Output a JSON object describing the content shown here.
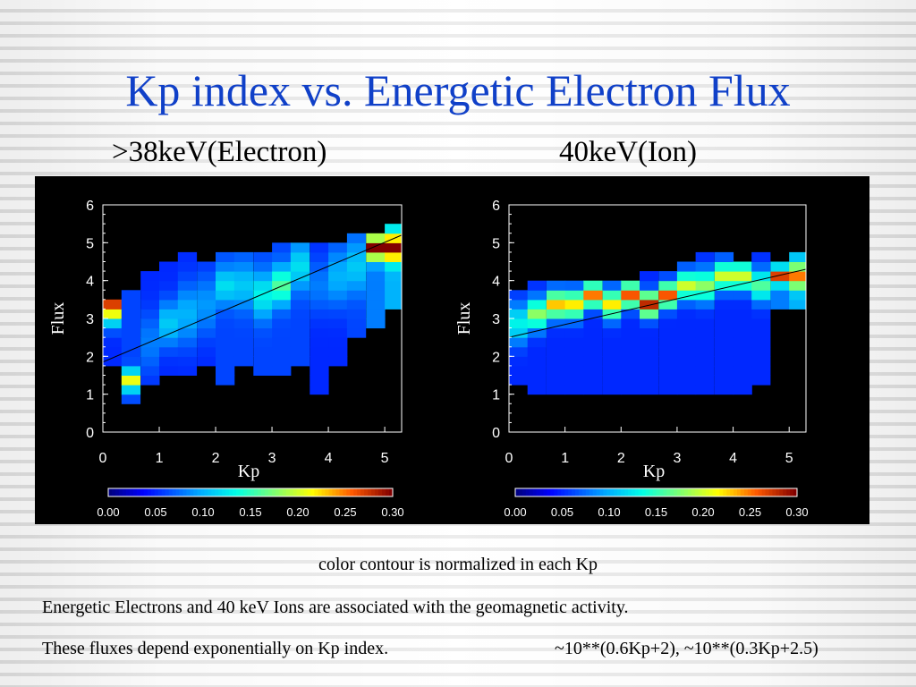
{
  "slide": {
    "title": "Kp index vs. Energetic Electron Flux",
    "subtitle_left": ">38keV(Electron)",
    "subtitle_right": "40keV(Ion)",
    "caption": "color contour is normalized in each Kp",
    "note1": "Energetic Electrons and 40 keV Ions are associated with the geomagnetic activity.",
    "note2": "These fluxes depend exponentially on Kp index.",
    "formula": "~10**(0.6Kp+2), ~10**(0.3Kp+2.5)"
  },
  "chart_data": [
    {
      "type": "heatmap",
      "xlabel": "Kp",
      "ylabel": "Flux",
      "xlim": [
        0,
        5.3
      ],
      "ylim": [
        0,
        6
      ],
      "xticks": [
        "0",
        "1",
        "2",
        "3",
        "4",
        "5"
      ],
      "yticks": [
        "0",
        "1",
        "2",
        "3",
        "4",
        "5",
        "6"
      ],
      "bin_width": 0.33,
      "bin_height": 0.25,
      "colorbar": {
        "min": 0.0,
        "max": 0.3,
        "ticks": [
          "0.00",
          "0.05",
          "0.10",
          "0.15",
          "0.20",
          "0.25",
          "0.30"
        ]
      },
      "fit_line": {
        "x0": 0,
        "y0": 1.85,
        "x1": 5.3,
        "y1": 5.2
      },
      "columns": [
        {
          "kp": 0.0,
          "ymin": 1.75,
          "ymax": 3.5,
          "peak": 3.25,
          "peak_value": 0.27,
          "spread": 0.45,
          "base": 0.05
        },
        {
          "kp": 0.33,
          "ymin": 0.75,
          "ymax": 3.75,
          "peak": 1.25,
          "peak_value": 0.21,
          "spread": 0.25,
          "base": 0.06
        },
        {
          "kp": 0.67,
          "ymin": 1.25,
          "ymax": 4.25,
          "peak": 2.25,
          "peak_value": 0.08,
          "spread": 0.8,
          "base": 0.05
        },
        {
          "kp": 1.0,
          "ymin": 1.5,
          "ymax": 4.5,
          "peak": 2.75,
          "peak_value": 0.11,
          "spread": 0.6,
          "base": 0.05
        },
        {
          "kp": 1.33,
          "ymin": 1.5,
          "ymax": 4.75,
          "peak": 3.0,
          "peak_value": 0.1,
          "spread": 0.8,
          "base": 0.05
        },
        {
          "kp": 1.67,
          "ymin": 1.75,
          "ymax": 4.5,
          "peak": 3.25,
          "peak_value": 0.09,
          "spread": 0.8,
          "base": 0.05
        },
        {
          "kp": 2.0,
          "ymin": 1.25,
          "ymax": 4.75,
          "peak": 3.75,
          "peak_value": 0.12,
          "spread": 0.5,
          "base": 0.06
        },
        {
          "kp": 2.33,
          "ymin": 1.75,
          "ymax": 4.75,
          "peak": 3.75,
          "peak_value": 0.11,
          "spread": 0.6,
          "base": 0.06
        },
        {
          "kp": 2.67,
          "ymin": 1.5,
          "ymax": 4.75,
          "peak": 3.5,
          "peak_value": 0.13,
          "spread": 0.6,
          "base": 0.06
        },
        {
          "kp": 3.0,
          "ymin": 1.5,
          "ymax": 5.0,
          "peak": 3.75,
          "peak_value": 0.16,
          "spread": 0.5,
          "base": 0.06
        },
        {
          "kp": 3.33,
          "ymin": 1.75,
          "ymax": 5.0,
          "peak": 4.25,
          "peak_value": 0.12,
          "spread": 0.6,
          "base": 0.06
        },
        {
          "kp": 3.67,
          "ymin": 1.0,
          "ymax": 5.0,
          "peak": 3.75,
          "peak_value": 0.08,
          "spread": 0.7,
          "base": 0.05
        },
        {
          "kp": 4.0,
          "ymin": 1.75,
          "ymax": 5.0,
          "peak": 4.0,
          "peak_value": 0.1,
          "spread": 0.8,
          "base": 0.05
        },
        {
          "kp": 4.33,
          "ymin": 2.5,
          "ymax": 5.25,
          "peak": 4.25,
          "peak_value": 0.11,
          "spread": 0.7,
          "base": 0.06
        },
        {
          "kp": 4.67,
          "ymin": 2.75,
          "ymax": 5.25,
          "peak": 4.75,
          "peak_value": 0.3,
          "spread": 0.3,
          "base": 0.08
        },
        {
          "kp": 5.0,
          "ymin": 3.25,
          "ymax": 5.5,
          "peak": 4.75,
          "peak_value": 0.3,
          "spread": 0.35,
          "base": 0.1
        }
      ]
    },
    {
      "type": "heatmap",
      "xlabel": "Kp",
      "ylabel": "Flux",
      "xlim": [
        0,
        5.3
      ],
      "ylim": [
        0,
        6
      ],
      "xticks": [
        "0",
        "1",
        "2",
        "3",
        "4",
        "5"
      ],
      "yticks": [
        "0",
        "1",
        "2",
        "3",
        "4",
        "5",
        "6"
      ],
      "bin_width": 0.33,
      "bin_height": 0.25,
      "colorbar": {
        "min": 0.0,
        "max": 0.3,
        "ticks": [
          "0.00",
          "0.05",
          "0.10",
          "0.15",
          "0.20",
          "0.25",
          "0.30"
        ]
      },
      "fit_line": {
        "x0": 0,
        "y0": 2.5,
        "x1": 5.3,
        "y1": 4.3
      },
      "columns": [
        {
          "kp": 0.0,
          "ymin": 1.25,
          "ymax": 3.75,
          "peak": 2.75,
          "peak_value": 0.13,
          "spread": 0.5,
          "base": 0.05
        },
        {
          "kp": 0.33,
          "ymin": 1.0,
          "ymax": 4.0,
          "peak": 3.0,
          "peak_value": 0.18,
          "spread": 0.4,
          "base": 0.05
        },
        {
          "kp": 0.67,
          "ymin": 1.0,
          "ymax": 4.0,
          "peak": 3.25,
          "peak_value": 0.23,
          "spread": 0.35,
          "base": 0.05
        },
        {
          "kp": 1.0,
          "ymin": 1.0,
          "ymax": 4.0,
          "peak": 3.25,
          "peak_value": 0.22,
          "spread": 0.35,
          "base": 0.05
        },
        {
          "kp": 1.33,
          "ymin": 1.0,
          "ymax": 4.0,
          "peak": 3.5,
          "peak_value": 0.25,
          "spread": 0.3,
          "base": 0.05
        },
        {
          "kp": 1.67,
          "ymin": 1.0,
          "ymax": 4.0,
          "peak": 3.25,
          "peak_value": 0.22,
          "spread": 0.35,
          "base": 0.05
        },
        {
          "kp": 2.0,
          "ymin": 1.0,
          "ymax": 4.0,
          "peak": 3.5,
          "peak_value": 0.26,
          "spread": 0.3,
          "base": 0.05
        },
        {
          "kp": 2.33,
          "ymin": 1.0,
          "ymax": 4.25,
          "peak": 3.25,
          "peak_value": 0.28,
          "spread": 0.3,
          "base": 0.05
        },
        {
          "kp": 2.67,
          "ymin": 1.0,
          "ymax": 4.25,
          "peak": 3.5,
          "peak_value": 0.26,
          "spread": 0.3,
          "base": 0.05
        },
        {
          "kp": 3.0,
          "ymin": 1.0,
          "ymax": 4.5,
          "peak": 3.75,
          "peak_value": 0.2,
          "spread": 0.35,
          "base": 0.05
        },
        {
          "kp": 3.33,
          "ymin": 1.0,
          "ymax": 4.75,
          "peak": 3.75,
          "peak_value": 0.18,
          "spread": 0.4,
          "base": 0.05
        },
        {
          "kp": 3.67,
          "ymin": 1.0,
          "ymax": 4.75,
          "peak": 4.0,
          "peak_value": 0.2,
          "spread": 0.35,
          "base": 0.05
        },
        {
          "kp": 4.0,
          "ymin": 1.0,
          "ymax": 4.5,
          "peak": 4.0,
          "peak_value": 0.2,
          "spread": 0.35,
          "base": 0.05
        },
        {
          "kp": 4.33,
          "ymin": 1.25,
          "ymax": 4.75,
          "peak": 3.75,
          "peak_value": 0.16,
          "spread": 0.4,
          "base": 0.05
        },
        {
          "kp": 4.67,
          "ymin": 3.25,
          "ymax": 4.5,
          "peak": 4.0,
          "peak_value": 0.27,
          "spread": 0.2,
          "base": 0.08
        },
        {
          "kp": 5.0,
          "ymin": 3.25,
          "ymax": 4.75,
          "peak": 4.0,
          "peak_value": 0.25,
          "spread": 0.3,
          "base": 0.1
        }
      ]
    }
  ]
}
